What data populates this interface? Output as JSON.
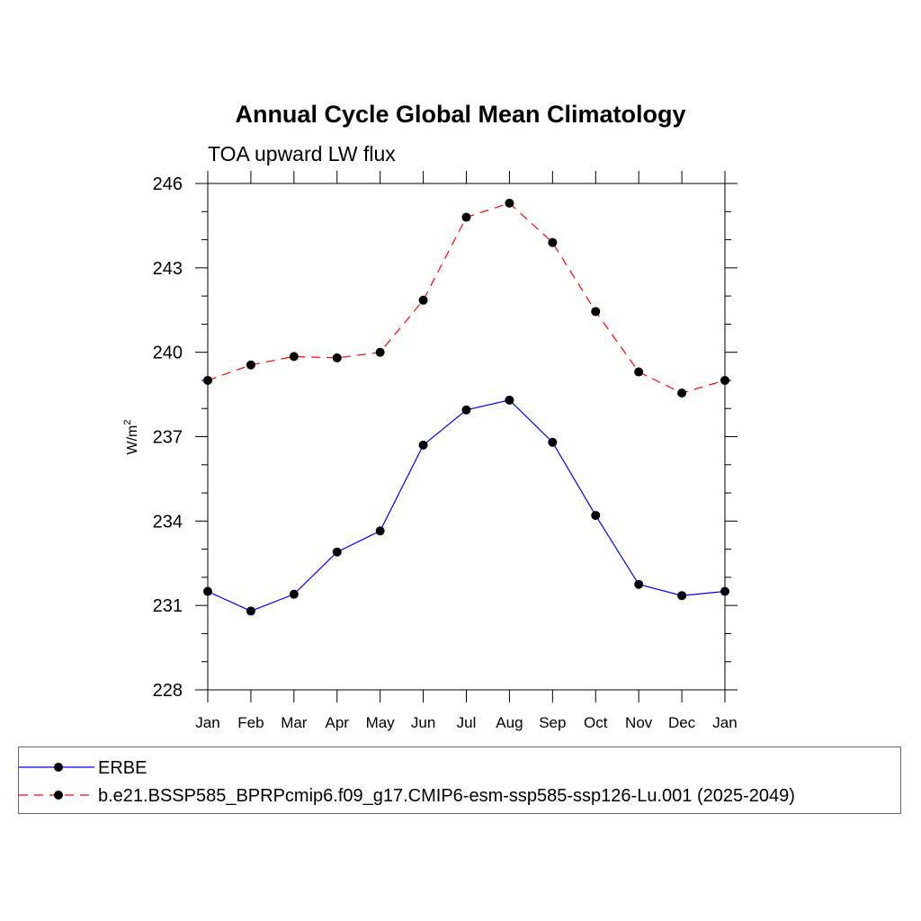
{
  "title": "Annual Cycle Global Mean Climatology",
  "subtitle": "TOA upward LW flux",
  "chart_data": {
    "type": "line",
    "title": "Annual Cycle Global Mean Climatology",
    "subtitle": "TOA upward LW flux",
    "xlabel": "",
    "ylabel": "W/m",
    "ylabel_superscript": "2",
    "categories": [
      "Jan",
      "Feb",
      "Mar",
      "Apr",
      "May",
      "Jun",
      "Jul",
      "Aug",
      "Sep",
      "Oct",
      "Nov",
      "Dec",
      "Jan"
    ],
    "ylim": [
      228,
      246
    ],
    "yticks": [
      228,
      231,
      234,
      237,
      240,
      243,
      246
    ],
    "series": [
      {
        "name": "ERBE",
        "color": "#0000ff",
        "dash": "solid",
        "values": [
          231.5,
          230.8,
          231.4,
          232.9,
          233.65,
          236.7,
          237.95,
          238.3,
          236.8,
          234.2,
          231.75,
          231.35,
          231.5
        ]
      },
      {
        "name": "b.e21.BSSP585_BPRPcmip6.f09_g17.CMIP6-esm-ssp585-ssp126-Lu.001 (2025-2049)",
        "color": "#ff0000",
        "dash": "dashed",
        "values": [
          239.0,
          239.55,
          239.85,
          239.8,
          240.0,
          241.85,
          244.8,
          245.3,
          243.9,
          241.45,
          239.3,
          238.55,
          239.0
        ]
      }
    ],
    "legend_position": "bottom"
  }
}
